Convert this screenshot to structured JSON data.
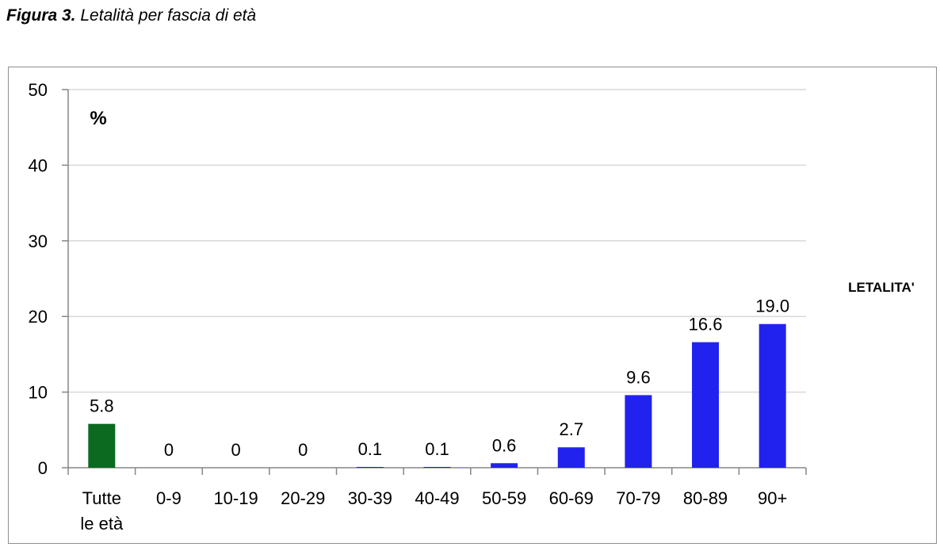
{
  "figure": {
    "number_label": "Figura 3.",
    "caption": "Letalità per fascia di età"
  },
  "chart_data": {
    "type": "bar",
    "title": "",
    "unit_label": "%",
    "legend": "LETALITA'",
    "legend_position": "right",
    "categories": [
      [
        "Tutte",
        "le età"
      ],
      [
        "0-9"
      ],
      [
        "10-19"
      ],
      [
        "20-29"
      ],
      [
        "30-39"
      ],
      [
        "40-49"
      ],
      [
        "50-59"
      ],
      [
        "60-69"
      ],
      [
        "70-79"
      ],
      [
        "80-89"
      ],
      [
        "90+"
      ]
    ],
    "values": [
      5.8,
      0,
      0,
      0,
      0.1,
      0.1,
      0.6,
      2.7,
      9.6,
      16.6,
      19.0
    ],
    "data_labels": [
      "5.8",
      "0",
      "0",
      "0",
      "0.1",
      "0.1",
      "0.6",
      "2.7",
      "9.6",
      "16.6",
      "19.0"
    ],
    "bar_colors": [
      "#0b6a1f",
      "#2222ee",
      "#2222ee",
      "#2222ee",
      "#2222ee",
      "#2222ee",
      "#2222ee",
      "#2222ee",
      "#2222ee",
      "#2222ee",
      "#2222ee"
    ],
    "ylim": [
      0,
      50
    ],
    "yticks": [
      0,
      10,
      20,
      30,
      40,
      50
    ],
    "grid": true
  }
}
